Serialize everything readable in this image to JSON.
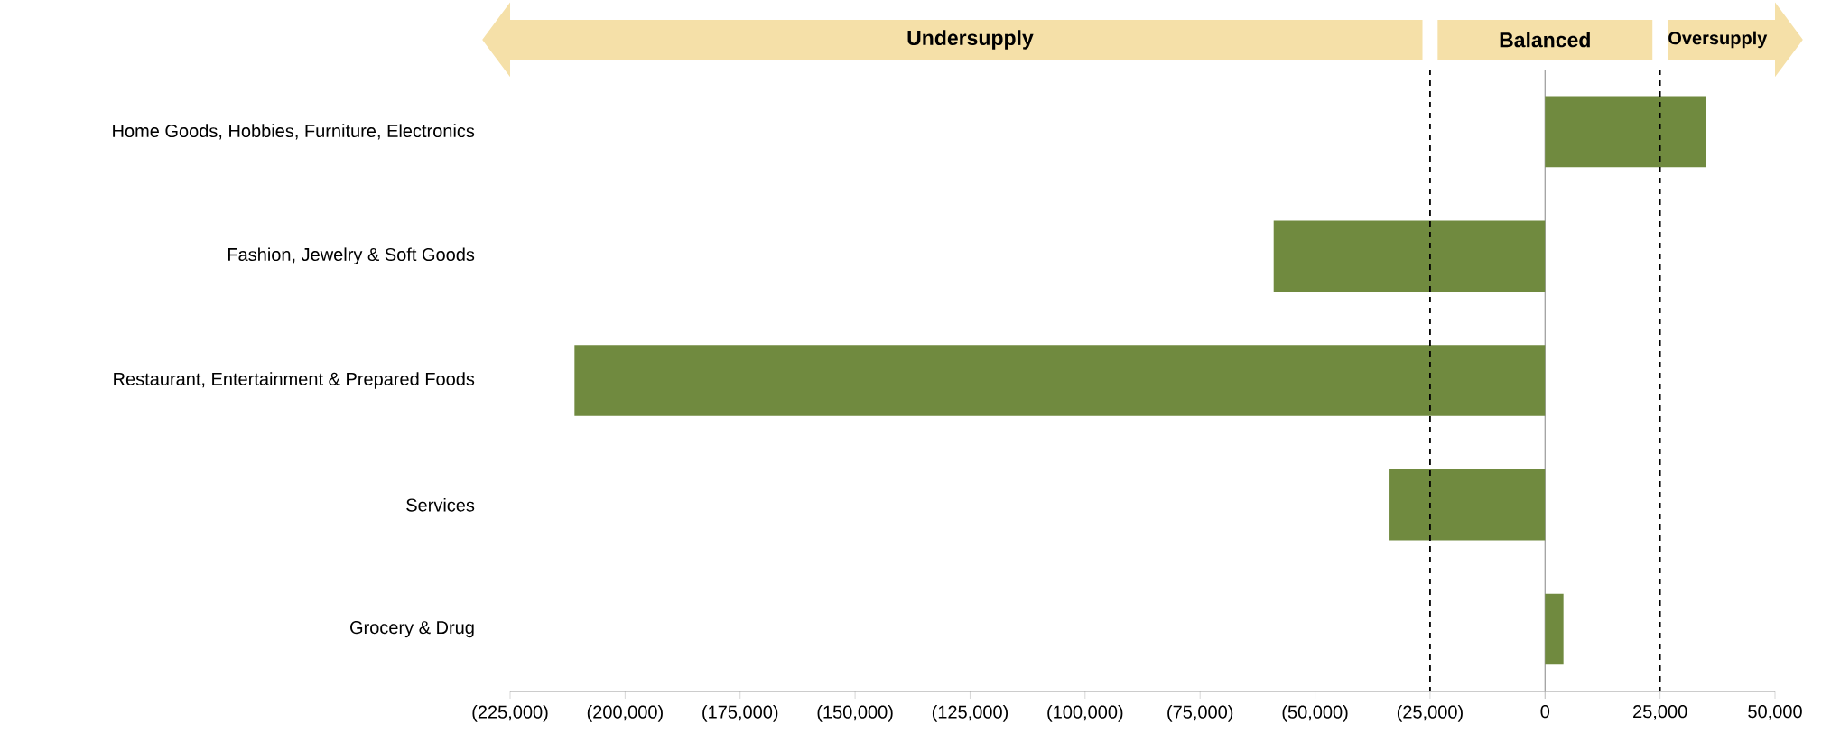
{
  "chart_data": {
    "type": "bar",
    "orientation": "horizontal",
    "categories": [
      "Home Goods, Hobbies, Furniture, Electronics",
      "Fashion, Jewelry & Soft Goods",
      "Restaurant, Entertainment & Prepared Foods",
      "Services",
      "Grocery & Drug"
    ],
    "values": [
      35000,
      -59000,
      -211000,
      -34000,
      4000
    ],
    "color": "#708a3f",
    "xlim": [
      -225000,
      50000
    ],
    "xticks": [
      {
        "value": -225000,
        "label": "(225,000)"
      },
      {
        "value": -200000,
        "label": "(200,000)"
      },
      {
        "value": -175000,
        "label": "(175,000)"
      },
      {
        "value": -150000,
        "label": "(150,000)"
      },
      {
        "value": -125000,
        "label": "(125,000)"
      },
      {
        "value": -100000,
        "label": "(100,000)"
      },
      {
        "value": -75000,
        "label": "(75,000)"
      },
      {
        "value": -50000,
        "label": "(50,000)"
      },
      {
        "value": -25000,
        "label": "(25,000)"
      },
      0,
      {
        "value": 25000,
        "label": "25,000"
      },
      {
        "value": 50000,
        "label": "50,000"
      }
    ],
    "ref_lines": [
      {
        "axis": "x",
        "value": -25000,
        "color": "#000000",
        "line_style": "dashed"
      },
      {
        "axis": "x",
        "value": 25000,
        "color": "#000000",
        "line_style": "dashed"
      }
    ],
    "annotations": [
      "Undersupply",
      "Balanced",
      "Oversupply"
    ]
  }
}
